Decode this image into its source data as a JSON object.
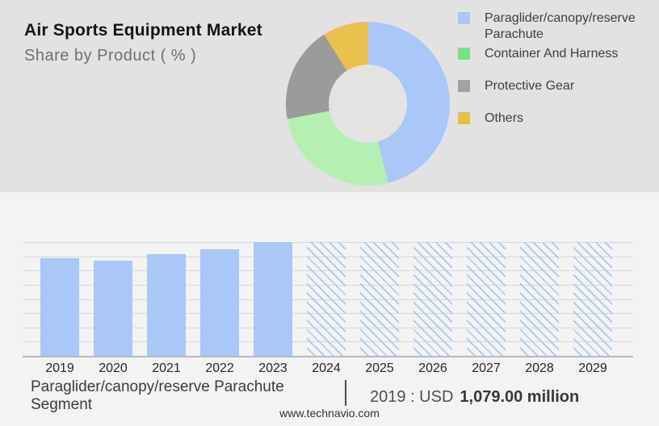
{
  "header": {
    "title": "Air Sports Equipment Market",
    "subtitle": "Share by Product ( % )"
  },
  "legend": {
    "items": [
      {
        "label": "Paraglider/canopy/reserve Parachute",
        "color": "#a9c7f8"
      },
      {
        "label": "Container And Harness",
        "color": "#72e583"
      },
      {
        "label": "Protective Gear",
        "color": "#a2a2a2"
      },
      {
        "label": "Others",
        "color": "#e2c247"
      }
    ]
  },
  "chart_data": [
    {
      "type": "pie",
      "subtype": "donut",
      "title": "Air Sports Equipment Market",
      "subtitle": "Share by Product ( % )",
      "legend_position": "right",
      "slices": [
        {
          "label": "Paraglider/canopy/reserve Parachute",
          "pct": 46,
          "color": "#a9c7f8"
        },
        {
          "label": "Container And Harness",
          "pct": 26,
          "color": "#b5efb2"
        },
        {
          "label": "Protective Gear",
          "pct": 19,
          "color": "#9b9b9b"
        },
        {
          "label": "Others",
          "pct": 9,
          "color": "#e9c14c"
        }
      ],
      "note": "no numeric labels shown; percentages estimated from arc angles, clockwise from 12 o'clock"
    },
    {
      "type": "bar",
      "categories": [
        "2019",
        "2020",
        "2021",
        "2022",
        "2023",
        "2024",
        "2025",
        "2026",
        "2027",
        "2028",
        "2029"
      ],
      "bars": [
        {
          "year": "2019",
          "height_pct": 85.8,
          "style": "solid"
        },
        {
          "year": "2020",
          "height_pct": 83.7,
          "style": "solid"
        },
        {
          "year": "2021",
          "height_pct": 89.4,
          "style": "solid"
        },
        {
          "year": "2022",
          "height_pct": 93.6,
          "style": "solid"
        },
        {
          "year": "2023",
          "height_pct": 100,
          "style": "solid"
        },
        {
          "year": "2024",
          "height_pct": 100,
          "style": "hatched"
        },
        {
          "year": "2025",
          "height_pct": 100,
          "style": "hatched"
        },
        {
          "year": "2026",
          "height_pct": 100,
          "style": "hatched"
        },
        {
          "year": "2027",
          "height_pct": 100,
          "style": "hatched"
        },
        {
          "year": "2028",
          "height_pct": 100,
          "style": "hatched"
        },
        {
          "year": "2029",
          "height_pct": 100,
          "style": "hatched"
        }
      ],
      "labeled_point": {
        "year": "2019",
        "value": "USD 1,079.00 million"
      },
      "y_axis_labels_shown": false,
      "gridlines_count": 8,
      "note": "heights are relative % of plot height estimated from gridlines; 2024-2029 are hatched forecast bars at full height"
    }
  ],
  "footer": {
    "segment_label": "Paraglider/canopy/reserve Parachute Segment",
    "divider": "|",
    "value_prefix": "2019 : USD",
    "value_bold": "1,079.00 million"
  },
  "site_url": "www.technavio.com",
  "colors": {
    "top_bg": "#e2e2e2",
    "bottom_bg": "#f3f3f4",
    "bar_blue": "#a9c7f8",
    "hatch_line": "#a9c6f2",
    "gridline": "#d8d8da",
    "axis": "#b5b9bc"
  }
}
